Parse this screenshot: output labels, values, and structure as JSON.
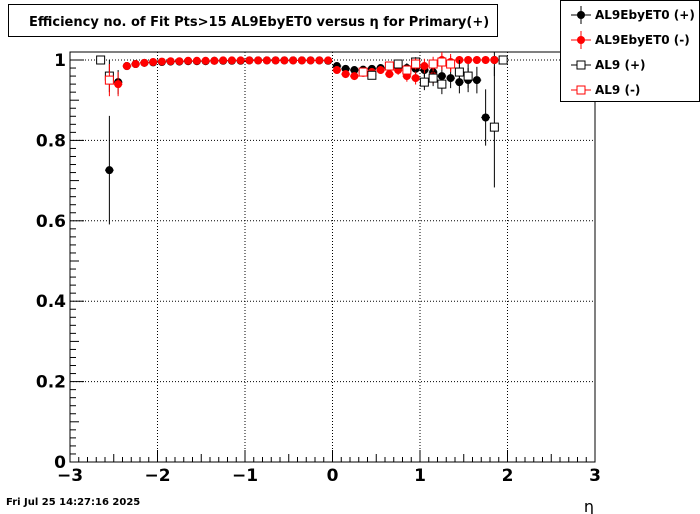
{
  "chart_data": {
    "type": "scatter",
    "title": "Efficiency no. of Fit Pts>15 AL9EbyET0 versus η for Primary(+)",
    "xlabel": "η",
    "ylabel": "",
    "xlim": [
      -3,
      3
    ],
    "ylim": [
      0,
      1.0
    ],
    "x_ticks": [
      -3,
      -2,
      -1,
      0,
      1,
      2,
      3
    ],
    "x_tick_labels": [
      "−3",
      "−2",
      "−1",
      "0",
      "1",
      "2",
      "3"
    ],
    "y_ticks": [
      0,
      0.2,
      0.4,
      0.6,
      0.8,
      1
    ],
    "y_tick_labels": [
      "0",
      "0.2",
      "0.4",
      "0.6",
      "0.8",
      "1"
    ],
    "grid": true,
    "legend_position": "top-right",
    "timestamp": "Fri Jul 25 14:27:16 2025",
    "series": [
      {
        "name": "AL9EbyET0 (+)",
        "color": "#000000",
        "marker": "filled-circle",
        "points": [
          {
            "x": -2.55,
            "y": 0.726,
            "err": 0.135
          },
          {
            "x": -2.45,
            "y": 0.945,
            "err": 0.03
          },
          {
            "x": -2.35,
            "y": 0.985,
            "err": 0.01
          },
          {
            "x": -2.25,
            "y": 0.99,
            "err": 0.006
          },
          {
            "x": -2.15,
            "y": 0.993,
            "err": 0.004
          },
          {
            "x": -2.05,
            "y": 0.994,
            "err": 0.003
          },
          {
            "x": -1.95,
            "y": 0.995,
            "err": 0.003
          },
          {
            "x": -1.85,
            "y": 0.996,
            "err": 0.002
          },
          {
            "x": -1.75,
            "y": 0.996,
            "err": 0.002
          },
          {
            "x": -1.65,
            "y": 0.997,
            "err": 0.002
          },
          {
            "x": -1.55,
            "y": 0.997,
            "err": 0.002
          },
          {
            "x": -1.45,
            "y": 0.997,
            "err": 0.002
          },
          {
            "x": -1.35,
            "y": 0.998,
            "err": 0.002
          },
          {
            "x": -1.25,
            "y": 0.998,
            "err": 0.002
          },
          {
            "x": -1.15,
            "y": 0.998,
            "err": 0.002
          },
          {
            "x": -1.05,
            "y": 0.998,
            "err": 0.002
          },
          {
            "x": -0.95,
            "y": 0.999,
            "err": 0.002
          },
          {
            "x": -0.85,
            "y": 0.999,
            "err": 0.002
          },
          {
            "x": -0.75,
            "y": 0.999,
            "err": 0.002
          },
          {
            "x": -0.65,
            "y": 0.999,
            "err": 0.002
          },
          {
            "x": -0.55,
            "y": 0.999,
            "err": 0.002
          },
          {
            "x": -0.45,
            "y": 0.999,
            "err": 0.002
          },
          {
            "x": -0.35,
            "y": 0.999,
            "err": 0.002
          },
          {
            "x": -0.25,
            "y": 0.999,
            "err": 0.002
          },
          {
            "x": -0.15,
            "y": 0.999,
            "err": 0.002
          },
          {
            "x": -0.05,
            "y": 0.998,
            "err": 0.002
          },
          {
            "x": 0.05,
            "y": 0.985,
            "err": 0.004
          },
          {
            "x": 0.15,
            "y": 0.978,
            "err": 0.005
          },
          {
            "x": 0.25,
            "y": 0.975,
            "err": 0.006
          },
          {
            "x": 0.35,
            "y": 0.976,
            "err": 0.006
          },
          {
            "x": 0.45,
            "y": 0.978,
            "err": 0.007
          },
          {
            "x": 0.55,
            "y": 0.98,
            "err": 0.008
          },
          {
            "x": 0.65,
            "y": 0.982,
            "err": 0.009
          },
          {
            "x": 0.75,
            "y": 0.985,
            "err": 0.01
          },
          {
            "x": 0.85,
            "y": 0.98,
            "err": 0.012
          },
          {
            "x": 0.95,
            "y": 0.978,
            "err": 0.014
          },
          {
            "x": 1.05,
            "y": 0.975,
            "err": 0.016
          },
          {
            "x": 1.15,
            "y": 0.97,
            "err": 0.018
          },
          {
            "x": 1.25,
            "y": 0.96,
            "err": 0.022
          },
          {
            "x": 1.35,
            "y": 0.955,
            "err": 0.025
          },
          {
            "x": 1.45,
            "y": 0.945,
            "err": 0.028
          },
          {
            "x": 1.55,
            "y": 0.95,
            "err": 0.03
          },
          {
            "x": 1.65,
            "y": 0.95,
            "err": 0.033
          },
          {
            "x": 1.75,
            "y": 0.857,
            "err": 0.07
          },
          {
            "x": 1.85,
            "y": 1.0,
            "err": 0.04
          },
          {
            "x": 1.95,
            "y": 1.0,
            "err": 0.0
          }
        ]
      },
      {
        "name": "AL9EbyET0 (-)",
        "color": "#ff0000",
        "marker": "filled-circle",
        "points": [
          {
            "x": -2.45,
            "y": 0.94,
            "err": 0.03
          },
          {
            "x": -2.35,
            "y": 0.985,
            "err": 0.01
          },
          {
            "x": -2.25,
            "y": 0.99,
            "err": 0.006
          },
          {
            "x": -2.15,
            "y": 0.993,
            "err": 0.004
          },
          {
            "x": -2.05,
            "y": 0.995,
            "err": 0.003
          },
          {
            "x": -1.95,
            "y": 0.996,
            "err": 0.003
          },
          {
            "x": -1.85,
            "y": 0.997,
            "err": 0.002
          },
          {
            "x": -1.75,
            "y": 0.997,
            "err": 0.002
          },
          {
            "x": -1.65,
            "y": 0.998,
            "err": 0.002
          },
          {
            "x": -1.55,
            "y": 0.998,
            "err": 0.002
          },
          {
            "x": -1.45,
            "y": 0.998,
            "err": 0.002
          },
          {
            "x": -1.35,
            "y": 0.998,
            "err": 0.002
          },
          {
            "x": -1.25,
            "y": 0.999,
            "err": 0.002
          },
          {
            "x": -1.15,
            "y": 0.999,
            "err": 0.002
          },
          {
            "x": -1.05,
            "y": 0.999,
            "err": 0.002
          },
          {
            "x": -0.95,
            "y": 0.999,
            "err": 0.002
          },
          {
            "x": -0.85,
            "y": 0.999,
            "err": 0.002
          },
          {
            "x": -0.75,
            "y": 0.999,
            "err": 0.002
          },
          {
            "x": -0.65,
            "y": 0.999,
            "err": 0.002
          },
          {
            "x": -0.55,
            "y": 0.999,
            "err": 0.002
          },
          {
            "x": -0.45,
            "y": 0.999,
            "err": 0.002
          },
          {
            "x": -0.35,
            "y": 0.999,
            "err": 0.002
          },
          {
            "x": -0.25,
            "y": 0.999,
            "err": 0.002
          },
          {
            "x": -0.15,
            "y": 0.999,
            "err": 0.002
          },
          {
            "x": -0.05,
            "y": 0.999,
            "err": 0.002
          },
          {
            "x": 0.05,
            "y": 0.975,
            "err": 0.005
          },
          {
            "x": 0.15,
            "y": 0.965,
            "err": 0.006
          },
          {
            "x": 0.25,
            "y": 0.96,
            "err": 0.007
          },
          {
            "x": 0.35,
            "y": 0.968,
            "err": 0.007
          },
          {
            "x": 0.45,
            "y": 0.97,
            "err": 0.008
          },
          {
            "x": 0.55,
            "y": 0.975,
            "err": 0.009
          },
          {
            "x": 0.65,
            "y": 0.965,
            "err": 0.01
          },
          {
            "x": 0.75,
            "y": 0.975,
            "err": 0.012
          },
          {
            "x": 0.85,
            "y": 0.96,
            "err": 0.014
          },
          {
            "x": 0.95,
            "y": 0.955,
            "err": 0.016
          },
          {
            "x": 1.05,
            "y": 0.985,
            "err": 0.018
          },
          {
            "x": 1.15,
            "y": 0.96,
            "err": 0.02
          },
          {
            "x": 1.25,
            "y": 1.0,
            "err": 0.02
          },
          {
            "x": 1.35,
            "y": 0.995,
            "err": 0.02
          },
          {
            "x": 1.45,
            "y": 1.0,
            "err": 0.01
          },
          {
            "x": 1.55,
            "y": 1.0,
            "err": 0.01
          },
          {
            "x": 1.65,
            "y": 1.0,
            "err": 0.01
          },
          {
            "x": 1.75,
            "y": 1.0,
            "err": 0.01
          },
          {
            "x": 1.85,
            "y": 1.0,
            "err": 0.01
          }
        ]
      },
      {
        "name": "AL9 (+)",
        "color": "#000000",
        "marker": "open-square",
        "points": [
          {
            "x": -2.65,
            "y": 1.0,
            "err": 0.0
          },
          {
            "x": -2.55,
            "y": 0.96,
            "err": 0.04
          },
          {
            "x": 0.45,
            "y": 0.962,
            "err": 0.008
          },
          {
            "x": 0.75,
            "y": 0.99,
            "err": 0.01
          },
          {
            "x": 0.95,
            "y": 0.995,
            "err": 0.012
          },
          {
            "x": 1.05,
            "y": 0.945,
            "err": 0.02
          },
          {
            "x": 1.15,
            "y": 0.955,
            "err": 0.02
          },
          {
            "x": 1.25,
            "y": 0.94,
            "err": 0.025
          },
          {
            "x": 1.45,
            "y": 0.97,
            "err": 0.03
          },
          {
            "x": 1.55,
            "y": 0.96,
            "err": 0.03
          },
          {
            "x": 1.85,
            "y": 0.833,
            "err": 0.15
          },
          {
            "x": 1.95,
            "y": 1.0,
            "err": 0.0
          }
        ]
      },
      {
        "name": "AL9 (-)",
        "color": "#ff0000",
        "marker": "open-square",
        "points": [
          {
            "x": -2.55,
            "y": 0.95,
            "err": 0.04
          },
          {
            "x": 0.35,
            "y": 0.97,
            "err": 0.008
          },
          {
            "x": 0.65,
            "y": 0.985,
            "err": 0.01
          },
          {
            "x": 0.85,
            "y": 0.975,
            "err": 0.012
          },
          {
            "x": 0.95,
            "y": 0.99,
            "err": 0.014
          },
          {
            "x": 1.15,
            "y": 0.99,
            "err": 0.018
          },
          {
            "x": 1.25,
            "y": 0.995,
            "err": 0.02
          },
          {
            "x": 1.35,
            "y": 0.99,
            "err": 0.02
          }
        ]
      }
    ]
  }
}
